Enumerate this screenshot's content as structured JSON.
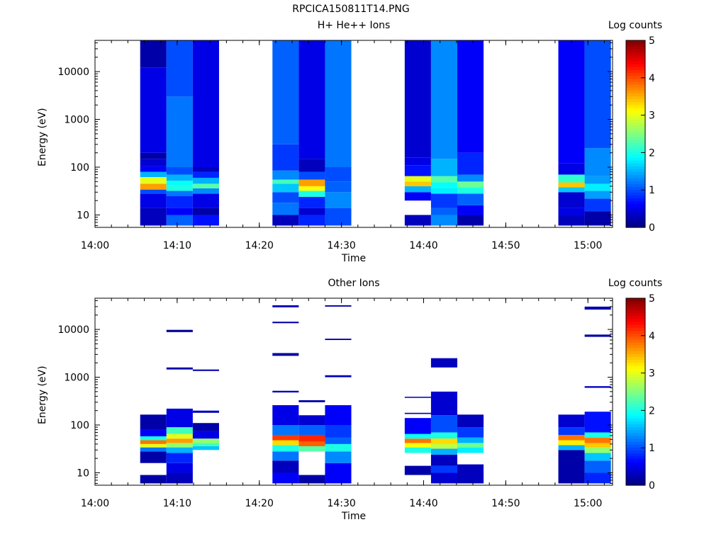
{
  "figure_title": "RPCICA150811T14.PNG",
  "chart_data": [
    {
      "type": "heatmap",
      "title": "H+ He++ Ions",
      "xlabel": "Time",
      "ylabel": "Energy (eV)",
      "colorbar_label": "Log counts",
      "colorbar_ticks": [
        "0",
        "1",
        "2",
        "3",
        "4",
        "5"
      ],
      "colorbar_range": [
        0,
        5
      ],
      "x_ticks": [
        "14:00",
        "14:10",
        "14:20",
        "14:30",
        "14:40",
        "14:50",
        "15:00"
      ],
      "y_ticks": [
        "10",
        "100",
        "1000",
        "10000"
      ],
      "y_scale": "log",
      "ylim": [
        5.5,
        45000
      ],
      "xlim": [
        "14:00",
        "15:03"
      ],
      "grid": false,
      "columns": [
        {
          "start": "14:05.5",
          "end": "14:08.7",
          "bins": [
            [
              6,
              14,
              0.3
            ],
            [
              14,
              28,
              0.5
            ],
            [
              28,
              34,
              1.0
            ],
            [
              34,
              45,
              3.6
            ],
            [
              45,
              62,
              3.0
            ],
            [
              62,
              80,
              1.5
            ],
            [
              80,
              105,
              0.6
            ],
            [
              105,
              150,
              0.4
            ],
            [
              150,
              200,
              0.2
            ],
            [
              200,
              12000,
              0.5
            ],
            [
              12000,
              45000,
              0.2
            ]
          ]
        },
        {
          "start": "14:08.7",
          "end": "14:11.9",
          "bins": [
            [
              6,
              10,
              1.1
            ],
            [
              10,
              14,
              0.6
            ],
            [
              14,
              25,
              0.8
            ],
            [
              25,
              32,
              1.2
            ],
            [
              32,
              42,
              2.0
            ],
            [
              42,
              52,
              1.9
            ],
            [
              52,
              70,
              1.5
            ],
            [
              70,
              100,
              1.0
            ],
            [
              100,
              3000,
              1.2
            ],
            [
              3000,
              45000,
              1.0
            ]
          ]
        },
        {
          "start": "14:11.9",
          "end": "14:15.1",
          "bins": [
            [
              6,
              10,
              0.7
            ],
            [
              10,
              14,
              0.2
            ],
            [
              14,
              28,
              0.5
            ],
            [
              28,
              36,
              1.3
            ],
            [
              36,
              45,
              2.3
            ],
            [
              45,
              60,
              1.5
            ],
            [
              60,
              80,
              0.8
            ],
            [
              80,
              100,
              0.3
            ],
            [
              100,
              45000,
              0.5
            ]
          ]
        },
        {
          "start": "14:21.6",
          "end": "14:24.8",
          "bins": [
            [
              6,
              10,
              0.3
            ],
            [
              10,
              18,
              1.2
            ],
            [
              18,
              30,
              1.0
            ],
            [
              30,
              45,
              1.6
            ],
            [
              45,
              55,
              2.2
            ],
            [
              55,
              85,
              1.3
            ],
            [
              85,
              300,
              0.9
            ],
            [
              300,
              45000,
              1.1
            ]
          ]
        },
        {
          "start": "14:24.8",
          "end": "14:28.0",
          "bins": [
            [
              6,
              10,
              0.8
            ],
            [
              10,
              14,
              0.4
            ],
            [
              14,
              24,
              0.8
            ],
            [
              24,
              32,
              2.0
            ],
            [
              32,
              40,
              3.1
            ],
            [
              40,
              55,
              3.6
            ],
            [
              55,
              80,
              1.0
            ],
            [
              80,
              150,
              0.3
            ],
            [
              150,
              45000,
              0.5
            ]
          ]
        },
        {
          "start": "14:28.0",
          "end": "14:31.2",
          "bins": [
            [
              6,
              14,
              1.0
            ],
            [
              14,
              30,
              1.3
            ],
            [
              30,
              50,
              1.1
            ],
            [
              50,
              100,
              1.0
            ],
            [
              100,
              45000,
              1.2
            ]
          ]
        },
        {
          "start": "14:37.7",
          "end": "14:40.9",
          "bins": [
            [
              6,
              10,
              0.3
            ],
            [
              20,
              30,
              0.6
            ],
            [
              30,
              40,
              1.5
            ],
            [
              40,
              50,
              3.4
            ],
            [
              50,
              65,
              3.0
            ],
            [
              65,
              110,
              0.7
            ],
            [
              110,
              160,
              0.5
            ],
            [
              160,
              45000,
              0.4
            ]
          ]
        },
        {
          "start": "14:40.9",
          "end": "14:44.1",
          "bins": [
            [
              6,
              10,
              1.3
            ],
            [
              10,
              14,
              1.1
            ],
            [
              14,
              28,
              0.9
            ],
            [
              28,
              36,
              1.8
            ],
            [
              36,
              48,
              1.9
            ],
            [
              48,
              65,
              2.3
            ],
            [
              65,
              150,
              1.5
            ],
            [
              150,
              45000,
              1.3
            ]
          ]
        },
        {
          "start": "14:44.1",
          "end": "14:47.3",
          "bins": [
            [
              6,
              10,
              0.2
            ],
            [
              10,
              16,
              0.6
            ],
            [
              16,
              28,
              1.1
            ],
            [
              28,
              38,
              2.0
            ],
            [
              38,
              50,
              2.4
            ],
            [
              50,
              70,
              1.3
            ],
            [
              70,
              200,
              0.8
            ],
            [
              200,
              45000,
              0.6
            ]
          ]
        },
        {
          "start": "14:56.4",
          "end": "14:59.6",
          "bins": [
            [
              6,
              10,
              0.3
            ],
            [
              10,
              14,
              0.5
            ],
            [
              14,
              30,
              0.4
            ],
            [
              30,
              38,
              1.6
            ],
            [
              38,
              48,
              3.4
            ],
            [
              48,
              70,
              2.1
            ],
            [
              70,
              120,
              0.5
            ],
            [
              120,
              45000,
              0.6
            ]
          ]
        },
        {
          "start": "14:59.6",
          "end": "15:02.8",
          "bins": [
            [
              6,
              12,
              0.2
            ],
            [
              12,
              22,
              0.9
            ],
            [
              22,
              32,
              1.4
            ],
            [
              32,
              45,
              1.8
            ],
            [
              45,
              65,
              1.4
            ],
            [
              65,
              250,
              1.3
            ],
            [
              250,
              45000,
              1.0
            ]
          ]
        }
      ]
    },
    {
      "type": "heatmap",
      "title": "Other Ions",
      "xlabel": "Time",
      "ylabel": "Energy (eV)",
      "colorbar_label": "Log counts",
      "colorbar_ticks": [
        "0",
        "1",
        "2",
        "3",
        "4",
        "5"
      ],
      "colorbar_range": [
        0,
        5
      ],
      "x_ticks": [
        "14:00",
        "14:10",
        "14:20",
        "14:30",
        "14:40",
        "14:50",
        "15:00"
      ],
      "y_ticks": [
        "10",
        "100",
        "1000",
        "10000"
      ],
      "y_scale": "log",
      "ylim": [
        5.5,
        45000
      ],
      "xlim": [
        "14:00",
        "15:03"
      ],
      "grid": false,
      "columns": [
        {
          "start": "14:05.5",
          "end": "14:08.7",
          "bins": [
            [
              6,
              9,
              0.2
            ],
            [
              16,
              28,
              0.2
            ],
            [
              28,
              34,
              1.2
            ],
            [
              34,
              40,
              3.0
            ],
            [
              40,
              48,
              3.8
            ],
            [
              48,
              58,
              2.0
            ],
            [
              58,
              80,
              0.6
            ],
            [
              80,
              165,
              0.2
            ]
          ]
        },
        {
          "start": "14:08.7",
          "end": "14:11.9",
          "bins": [
            [
              6,
              10,
              0.3
            ],
            [
              10,
              16,
              0.5
            ],
            [
              16,
              26,
              0.8
            ],
            [
              26,
              34,
              1.5
            ],
            [
              34,
              42,
              2.6
            ],
            [
              42,
              52,
              3.6
            ],
            [
              52,
              65,
              3.0
            ],
            [
              65,
              90,
              2.2
            ],
            [
              90,
              220,
              0.5
            ],
            [
              1450,
              1600,
              0.2
            ],
            [
              8800,
              9800,
              0.1
            ]
          ]
        },
        {
          "start": "14:11.9",
          "end": "14:15.1",
          "bins": [
            [
              30,
              36,
              1.6
            ],
            [
              36,
              42,
              2.2
            ],
            [
              42,
              52,
              2.6
            ],
            [
              52,
              75,
              0.5
            ],
            [
              75,
              110,
              0.2
            ],
            [
              180,
              200,
              0.3
            ],
            [
              1350,
              1450,
              0.2
            ]
          ]
        },
        {
          "start": "14:21.6",
          "end": "14:24.8",
          "bins": [
            [
              6,
              10,
              0.6
            ],
            [
              10,
              18,
              0.3
            ],
            [
              18,
              28,
              1.2
            ],
            [
              28,
              38,
              2.0
            ],
            [
              38,
              48,
              3.3
            ],
            [
              48,
              62,
              4.1
            ],
            [
              62,
              100,
              1.2
            ],
            [
              100,
              260,
              0.5
            ],
            [
              480,
              520,
              0.3
            ],
            [
              2800,
              3200,
              0.2
            ],
            [
              13500,
              14500,
              0.2
            ],
            [
              29000,
              32000,
              0.3
            ]
          ]
        },
        {
          "start": "14:24.8",
          "end": "14:28.0",
          "bins": [
            [
              6,
              9,
              0.2
            ],
            [
              28,
              36,
              2.3
            ],
            [
              36,
              45,
              3.9
            ],
            [
              45,
              62,
              4.2
            ],
            [
              62,
              100,
              1.1
            ],
            [
              100,
              160,
              0.4
            ],
            [
              300,
              330,
              0.2
            ]
          ]
        },
        {
          "start": "14:28.0",
          "end": "14:31.2",
          "bins": [
            [
              6,
              16,
              0.6
            ],
            [
              16,
              28,
              1.3
            ],
            [
              28,
              40,
              2.0
            ],
            [
              40,
              55,
              1.1
            ],
            [
              55,
              100,
              0.9
            ],
            [
              100,
              260,
              0.6
            ],
            [
              1000,
              1100,
              0.3
            ],
            [
              6000,
              6400,
              0.2
            ],
            [
              30000,
              32000,
              0.2
            ]
          ]
        },
        {
          "start": "14:37.7",
          "end": "14:40.9",
          "bins": [
            [
              9,
              14,
              0.2
            ],
            [
              26,
              34,
              2.0
            ],
            [
              34,
              42,
              3.1
            ],
            [
              42,
              52,
              3.8
            ],
            [
              52,
              65,
              1.9
            ],
            [
              65,
              140,
              0.6
            ],
            [
              170,
              180,
              0.3
            ],
            [
              370,
              390,
              0.3
            ]
          ]
        },
        {
          "start": "14:40.9",
          "end": "14:44.1",
          "bins": [
            [
              6,
              10,
              0.4
            ],
            [
              10,
              14,
              0.9
            ],
            [
              14,
              24,
              0.3
            ],
            [
              24,
              32,
              1.5
            ],
            [
              32,
              40,
              2.8
            ],
            [
              40,
              52,
              3.3
            ],
            [
              52,
              70,
              2.0
            ],
            [
              70,
              160,
              1.0
            ],
            [
              160,
              500,
              0.4
            ],
            [
              1600,
              2500,
              0.3
            ]
          ]
        },
        {
          "start": "14:44.1",
          "end": "14:47.3",
          "bins": [
            [
              6,
              15,
              0.3
            ],
            [
              26,
              34,
              1.8
            ],
            [
              34,
              42,
              2.4
            ],
            [
              42,
              55,
              1.5
            ],
            [
              55,
              90,
              0.9
            ],
            [
              90,
              165,
              0.3
            ]
          ]
        },
        {
          "start": "14:56.4",
          "end": "14:59.6",
          "bins": [
            [
              6,
              30,
              0.2
            ],
            [
              30,
              38,
              1.5
            ],
            [
              38,
              48,
              3.2
            ],
            [
              48,
              62,
              3.8
            ],
            [
              62,
              90,
              0.9
            ],
            [
              90,
              165,
              0.4
            ]
          ]
        },
        {
          "start": "14:59.6",
          "end": "15:02.8",
          "bins": [
            [
              6,
              10,
              0.8
            ],
            [
              10,
              18,
              1.1
            ],
            [
              18,
              26,
              1.6
            ],
            [
              26,
              34,
              2.6
            ],
            [
              34,
              42,
              3.4
            ],
            [
              42,
              54,
              3.8
            ],
            [
              54,
              70,
              2.0
            ],
            [
              70,
              190,
              0.7
            ],
            [
              600,
              650,
              0.3
            ],
            [
              7000,
              7800,
              0.2
            ],
            [
              26000,
              30000,
              0.2
            ]
          ]
        }
      ]
    }
  ]
}
